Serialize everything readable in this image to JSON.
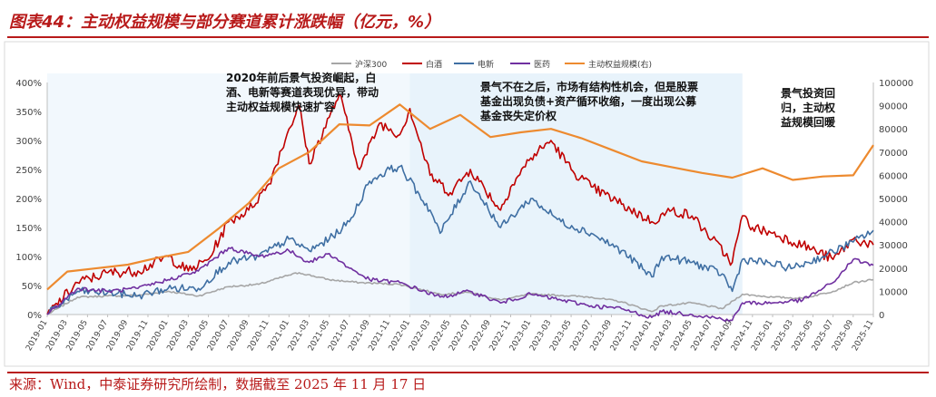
{
  "figure": {
    "title": "图表44：主动权益规模与部分赛道累计涨跌幅（亿元，%）",
    "source": "来源：Wind，中泰证券研究所绘制，数据截至 2025 年 11 月 17 日"
  },
  "colors": {
    "hs300": "#a6a6a6",
    "baijiu": "#c00000",
    "dianxin": "#3f6fa3",
    "yiyao": "#7030a0",
    "scale": "#ed8a2f",
    "shade": "#e8f3fb",
    "title_red": "#b81a1a"
  },
  "chart_data": {
    "type": "line",
    "title": "",
    "xlabel": "",
    "ylabel": "",
    "y_left_range": [
      0,
      400
    ],
    "y_right_range": [
      0,
      100000
    ],
    "y_left_ticks": [
      "0%",
      "50%",
      "100%",
      "150%",
      "200%",
      "250%",
      "300%",
      "350%",
      "400%"
    ],
    "y_right_ticks": [
      "0",
      "10000",
      "20000",
      "30000",
      "40000",
      "50000",
      "60000",
      "70000",
      "80000",
      "90000",
      "100000"
    ],
    "x_tick_labels": [
      "2019-01",
      "2019-03",
      "2019-05",
      "2019-07",
      "2019-09",
      "2019-11",
      "2020-01",
      "2020-03",
      "2020-05",
      "2020-07",
      "2020-09",
      "2020-11",
      "2021-01",
      "2021-03",
      "2021-05",
      "2021-07",
      "2021-09",
      "2021-11",
      "2022-01",
      "2022-03",
      "2022-05",
      "2022-07",
      "2022-09",
      "2022-11",
      "2023-01",
      "2023-03",
      "2023-05",
      "2023-07",
      "2023-09",
      "2023-11",
      "2024-01",
      "2024-03",
      "2024-05",
      "2024-07",
      "2024-09",
      "2024-11",
      "2025-01",
      "2025-03",
      "2025-05",
      "2025-07",
      "2025-09",
      "2025-11"
    ],
    "legend": [
      "沪深300",
      "白酒",
      "电新",
      "医药",
      "主动权益规模(右)"
    ],
    "legend_placement": "top",
    "grid": false,
    "shaded_periods": [
      [
        "2019-01",
        "2022-01"
      ],
      [
        "2022-01",
        "2024-10"
      ]
    ],
    "series": [
      {
        "name": "沪深300",
        "axis": "left",
        "x": [
          "2019-01",
          "2019-04",
          "2019-07",
          "2019-10",
          "2020-01",
          "2020-04",
          "2020-07",
          "2020-10",
          "2021-01",
          "2021-02",
          "2021-05",
          "2021-08",
          "2021-12",
          "2022-04",
          "2022-07",
          "2022-10",
          "2023-01",
          "2023-04",
          "2023-07",
          "2023-10",
          "2024-01",
          "2024-02",
          "2024-05",
          "2024-08",
          "2024-10",
          "2025-01",
          "2025-04",
          "2025-07",
          "2025-09",
          "2025-11"
        ],
        "values": [
          0,
          30,
          32,
          33,
          40,
          32,
          48,
          52,
          68,
          72,
          60,
          55,
          52,
          35,
          38,
          25,
          35,
          33,
          30,
          22,
          5,
          15,
          20,
          10,
          35,
          30,
          28,
          40,
          55,
          60
        ]
      },
      {
        "name": "白酒",
        "axis": "left",
        "x": [
          "2019-01",
          "2019-04",
          "2019-07",
          "2019-10",
          "2020-01",
          "2020-03",
          "2020-05",
          "2020-07",
          "2020-09",
          "2020-11",
          "2021-01",
          "2021-02",
          "2021-03",
          "2021-05",
          "2021-06",
          "2021-08",
          "2021-10",
          "2021-12",
          "2022-01",
          "2022-03",
          "2022-05",
          "2022-07",
          "2022-10",
          "2022-11",
          "2023-01",
          "2023-03",
          "2023-05",
          "2023-07",
          "2023-10",
          "2024-01",
          "2024-03",
          "2024-05",
          "2024-07",
          "2024-09",
          "2024-10",
          "2024-11",
          "2025-01",
          "2025-04",
          "2025-07",
          "2025-09",
          "2025-11"
        ],
        "values": [
          0,
          55,
          72,
          75,
          100,
          75,
          95,
          160,
          180,
          225,
          320,
          360,
          260,
          340,
          380,
          250,
          330,
          310,
          355,
          240,
          210,
          250,
          180,
          220,
          270,
          300,
          250,
          220,
          190,
          160,
          180,
          170,
          130,
          90,
          170,
          150,
          140,
          120,
          95,
          130,
          120
        ]
      },
      {
        "name": "电新",
        "axis": "left",
        "x": [
          "2019-01",
          "2019-04",
          "2019-07",
          "2019-10",
          "2020-01",
          "2020-04",
          "2020-07",
          "2020-10",
          "2021-01",
          "2021-03",
          "2021-05",
          "2021-07",
          "2021-09",
          "2021-11",
          "2021-12",
          "2022-03",
          "2022-04",
          "2022-07",
          "2022-10",
          "2023-01",
          "2023-04",
          "2023-07",
          "2023-10",
          "2024-01",
          "2024-02",
          "2024-05",
          "2024-08",
          "2024-09",
          "2024-10",
          "2024-12",
          "2025-03",
          "2025-06",
          "2025-09",
          "2025-11"
        ],
        "values": [
          0,
          40,
          38,
          32,
          45,
          45,
          90,
          100,
          130,
          110,
          130,
          160,
          230,
          250,
          255,
          180,
          140,
          230,
          150,
          200,
          160,
          140,
          110,
          65,
          100,
          90,
          70,
          40,
          95,
          90,
          80,
          100,
          125,
          145
        ]
      },
      {
        "name": "医药",
        "axis": "left",
        "x": [
          "2019-01",
          "2019-04",
          "2019-07",
          "2019-10",
          "2020-01",
          "2020-04",
          "2020-07",
          "2020-10",
          "2021-01",
          "2021-03",
          "2021-05",
          "2021-07",
          "2021-09",
          "2021-12",
          "2022-04",
          "2022-07",
          "2022-10",
          "2023-01",
          "2023-04",
          "2023-07",
          "2023-10",
          "2024-01",
          "2024-02",
          "2024-05",
          "2024-09",
          "2024-10",
          "2025-01",
          "2025-04",
          "2025-07",
          "2025-09",
          "2025-11"
        ],
        "values": [
          0,
          45,
          40,
          45,
          60,
          75,
          115,
          100,
          110,
          90,
          105,
          80,
          60,
          55,
          30,
          40,
          20,
          35,
          25,
          15,
          10,
          -5,
          5,
          0,
          -10,
          20,
          20,
          25,
          55,
          95,
          85
        ]
      },
      {
        "name": "主动权益规模(右)",
        "axis": "right",
        "x": [
          "2019-01",
          "2019-03",
          "2019-06",
          "2019-09",
          "2019-12",
          "2020-03",
          "2020-06",
          "2020-09",
          "2020-12",
          "2021-03",
          "2021-06",
          "2021-09",
          "2021-12",
          "2022-03",
          "2022-06",
          "2022-09",
          "2022-12",
          "2023-03",
          "2023-06",
          "2023-09",
          "2023-12",
          "2024-03",
          "2024-06",
          "2024-09",
          "2024-12",
          "2025-03",
          "2025-06",
          "2025-09",
          "2025-11"
        ],
        "values": [
          10800,
          18500,
          20000,
          21500,
          24500,
          27000,
          37000,
          48000,
          63000,
          70000,
          82000,
          81500,
          90500,
          80000,
          86000,
          76500,
          78500,
          80000,
          76000,
          71000,
          66000,
          63500,
          61000,
          59000,
          63000,
          58000,
          59500,
          60000,
          73000
        ]
      }
    ],
    "annotations": [
      "2020年前后景气投资崛起，白酒、电新等赛道表现优异，带动主动权益规模快速扩容",
      "景气不在之后，市场有结构性机会，但是股票基金出现负债+资产循环收缩，一度出现公募基金丧失定价权",
      "景气投资回归，主动权益规模回暖"
    ]
  }
}
